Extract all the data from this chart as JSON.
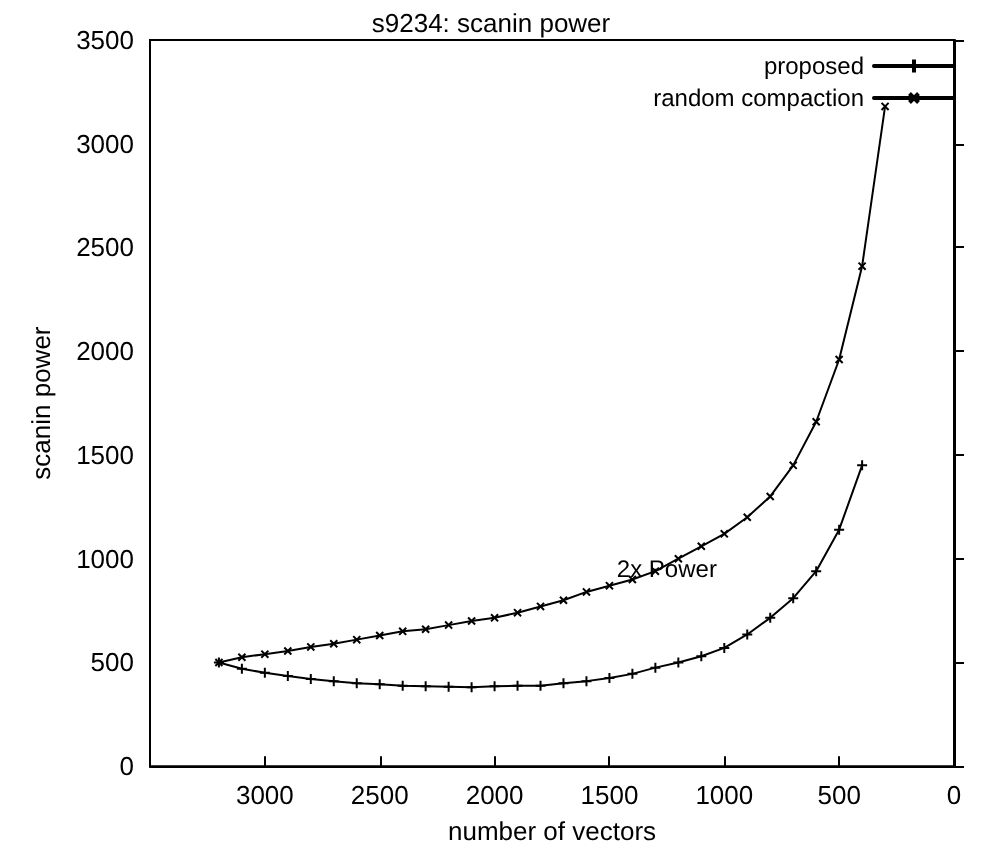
{
  "chart_data": {
    "type": "line",
    "title": "s9234: scanin power",
    "xlabel": "number of vectors",
    "ylabel": "scanin power",
    "xlim": [
      3500,
      0
    ],
    "xticks": [
      3000,
      2500,
      2000,
      1500,
      1000,
      500,
      0
    ],
    "ylim": [
      0,
      3500
    ],
    "yticks": [
      0,
      500,
      1000,
      1500,
      2000,
      2500,
      3000,
      3500
    ],
    "grid": false,
    "legend": "top right",
    "marker": "cross",
    "line_style": "solid",
    "annotations": [
      {
        "text": "2x Power",
        "x": 1250,
        "y": 950
      }
    ],
    "series": [
      {
        "name": "proposed",
        "color": "#000000",
        "x": [
          3200,
          3100,
          3000,
          2900,
          2800,
          2700,
          2600,
          2500,
          2400,
          2300,
          2200,
          2100,
          2000,
          1900,
          1800,
          1700,
          1600,
          1500,
          1400,
          1300,
          1200,
          1100,
          1000,
          900,
          800,
          700,
          600,
          500,
          400
        ],
        "values": [
          500,
          470,
          450,
          435,
          420,
          410,
          400,
          395,
          388,
          385,
          383,
          380,
          385,
          388,
          388,
          400,
          410,
          425,
          445,
          475,
          500,
          530,
          570,
          635,
          715,
          810,
          940,
          1140,
          1450
        ]
      },
      {
        "name": "random compaction",
        "color": "#000000",
        "x": [
          3200,
          3100,
          3000,
          2900,
          2800,
          2700,
          2600,
          2500,
          2400,
          2300,
          2200,
          2100,
          2000,
          1900,
          1800,
          1700,
          1600,
          1500,
          1400,
          1300,
          1200,
          1100,
          1000,
          900,
          800,
          700,
          600,
          500,
          400,
          300
        ],
        "values": [
          500,
          525,
          540,
          555,
          575,
          590,
          610,
          630,
          650,
          660,
          680,
          700,
          715,
          740,
          770,
          800,
          840,
          870,
          900,
          940,
          1000,
          1060,
          1120,
          1200,
          1300,
          1450,
          1660,
          1960,
          2410,
          3180
        ]
      }
    ]
  }
}
